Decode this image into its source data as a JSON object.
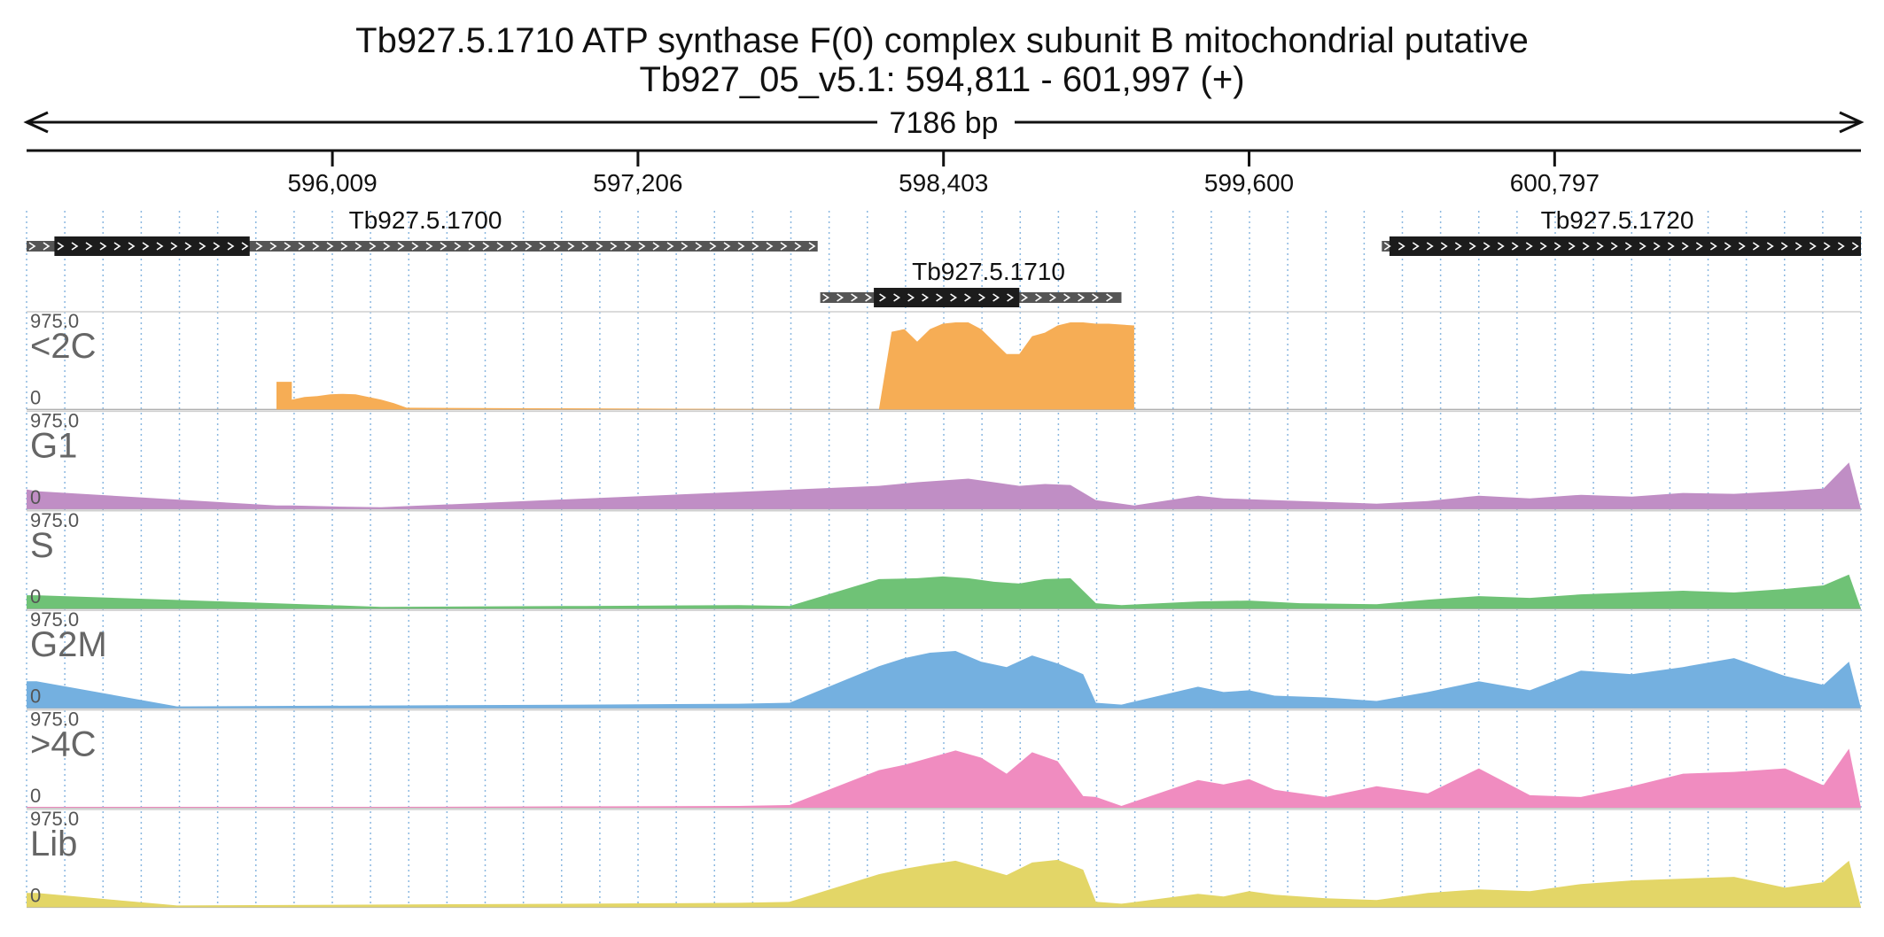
{
  "header": {
    "title": "Tb927.5.1710  ATP synthase F(0) complex subunit B  mitochondrial  putative",
    "locus": "Tb927_05_v5.1: 594,811 - 601,997 (+)",
    "span_label": "7186 bp"
  },
  "chart_data": {
    "type": "area",
    "xlim": [
      594811,
      601997
    ],
    "ruler": {
      "ticks": [
        596009,
        597206,
        598403,
        599600,
        600797
      ],
      "tick_labels": [
        "596,009",
        "597,206",
        "598,403",
        "599,600",
        "600,797"
      ]
    },
    "genes": [
      {
        "name": "Tb927.5.1700",
        "transcript": [
          594811,
          597910
        ],
        "cds": [
          594920,
          595685
        ],
        "strand": "+"
      },
      {
        "name": "Tb927.5.1710",
        "transcript": [
          597920,
          599100
        ],
        "cds": [
          598130,
          598700
        ],
        "strand": "+"
      },
      {
        "name": "Tb927.5.1720",
        "transcript": [
          600120,
          601997
        ],
        "cds": [
          600150,
          601997
        ],
        "strand": "+"
      }
    ],
    "tracks": [
      {
        "name": "<2C",
        "color": "#f6ad55",
        "ymax_label": "975.0",
        "ymin_label": "0",
        "ylim": [
          0,
          975
        ],
        "x": [
          595790,
          595850,
          595850,
          595900,
          595950,
          596000,
          596050,
          596100,
          596150,
          596200,
          596250,
          596300,
          598150,
          598200,
          598250,
          598300,
          598350,
          598400,
          598450,
          598500,
          598550,
          598600,
          598650,
          598700,
          598750,
          598800,
          598850,
          598900,
          598950,
          599000,
          599050,
          599100,
          599150
        ],
        "y": [
          310,
          310,
          110,
          140,
          150,
          170,
          175,
          170,
          140,
          110,
          70,
          20,
          0,
          870,
          900,
          760,
          900,
          960,
          1000,
          980,
          900,
          760,
          620,
          620,
          820,
          860,
          940,
          1000,
          980,
          960,
          960,
          950,
          940
        ]
      },
      {
        "name": "G1",
        "color": "#c08ec5",
        "ymax_label": "975.0",
        "ymin_label": "0",
        "ylim": [
          0,
          975
        ],
        "x": [
          594811,
          594850,
          595790,
          595850,
          596000,
          596200,
          598150,
          598300,
          598400,
          598500,
          598600,
          598700,
          598800,
          598900,
          599000,
          599100,
          599150,
          599400,
          599500,
          599700,
          599900,
          600100,
          600300,
          600500,
          600700,
          600900,
          601100,
          601300,
          601500,
          601700,
          601850,
          601950,
          601997
        ],
        "y": [
          220,
          200,
          40,
          40,
          30,
          20,
          260,
          300,
          320,
          340,
          300,
          260,
          280,
          270,
          100,
          60,
          40,
          150,
          120,
          100,
          80,
          60,
          90,
          150,
          120,
          160,
          140,
          180,
          170,
          200,
          230,
          520,
          0
        ]
      },
      {
        "name": "S",
        "color": "#6fc276",
        "ymax_label": "975.0",
        "ymin_label": "0",
        "ylim": [
          0,
          975
        ],
        "x": [
          594811,
          594850,
          596200,
          597000,
          597600,
          597800,
          598150,
          598300,
          598400,
          598500,
          598600,
          598700,
          598800,
          598900,
          599000,
          599100,
          599400,
          599600,
          599800,
          600100,
          600300,
          600500,
          600700,
          600900,
          601100,
          601300,
          601500,
          601700,
          601850,
          601950,
          601997
        ],
        "y": [
          150,
          150,
          20,
          30,
          40,
          30,
          330,
          340,
          360,
          340,
          300,
          280,
          330,
          340,
          60,
          40,
          80,
          90,
          60,
          50,
          100,
          140,
          120,
          160,
          180,
          200,
          180,
          220,
          260,
          380,
          0
        ]
      },
      {
        "name": "G2M",
        "color": "#74b0e0",
        "ymax_label": "975.0",
        "ymin_label": "0",
        "ylim": [
          0,
          975
        ],
        "x": [
          594811,
          594850,
          595400,
          596200,
          597000,
          597600,
          597800,
          598150,
          598250,
          598350,
          598450,
          598550,
          598650,
          598750,
          598850,
          598950,
          599000,
          599100,
          599400,
          599500,
          599600,
          599700,
          599900,
          600100,
          600300,
          600500,
          600700,
          600900,
          601100,
          601300,
          601500,
          601700,
          601850,
          601950,
          601997
        ],
        "y": [
          300,
          300,
          20,
          30,
          40,
          50,
          60,
          470,
          560,
          620,
          640,
          520,
          460,
          590,
          500,
          380,
          60,
          40,
          240,
          180,
          200,
          140,
          120,
          80,
          180,
          300,
          200,
          420,
          380,
          460,
          560,
          360,
          260,
          520,
          0
        ]
      },
      {
        "name": ">4C",
        "color": "#f08cc0",
        "ymax_label": "975.0",
        "ymin_label": "0",
        "ylim": [
          0,
          975
        ],
        "x": [
          594811,
          595400,
          596200,
          597000,
          597600,
          597800,
          598150,
          598250,
          598350,
          598450,
          598550,
          598650,
          598750,
          598850,
          598950,
          599000,
          599100,
          599400,
          599500,
          599600,
          599700,
          599900,
          600100,
          600300,
          600500,
          600700,
          600900,
          601100,
          601300,
          601500,
          601700,
          601850,
          601950,
          601997
        ],
        "y": [
          10,
          10,
          10,
          15,
          20,
          30,
          420,
          480,
          560,
          640,
          560,
          380,
          620,
          520,
          130,
          120,
          20,
          310,
          260,
          320,
          200,
          120,
          240,
          160,
          440,
          140,
          120,
          240,
          380,
          400,
          440,
          250,
          660,
          0
        ]
      },
      {
        "name": "Lib",
        "color": "#e3d667",
        "ymax_label": "975.0",
        "ymin_label": "0",
        "ylim": [
          0,
          975
        ],
        "x": [
          594811,
          594850,
          595400,
          596200,
          597000,
          597600,
          597800,
          598150,
          598250,
          598350,
          598450,
          598550,
          598650,
          598750,
          598850,
          598950,
          599000,
          599100,
          599400,
          599500,
          599600,
          599700,
          599900,
          600100,
          600300,
          600500,
          600700,
          600900,
          601100,
          601300,
          601500,
          601700,
          601850,
          601950,
          601997
        ],
        "y": [
          160,
          160,
          20,
          30,
          40,
          50,
          60,
          370,
          430,
          480,
          520,
          440,
          360,
          500,
          530,
          420,
          60,
          40,
          150,
          120,
          180,
          140,
          100,
          80,
          160,
          200,
          180,
          260,
          300,
          320,
          340,
          220,
          280,
          520,
          0
        ]
      }
    ]
  }
}
